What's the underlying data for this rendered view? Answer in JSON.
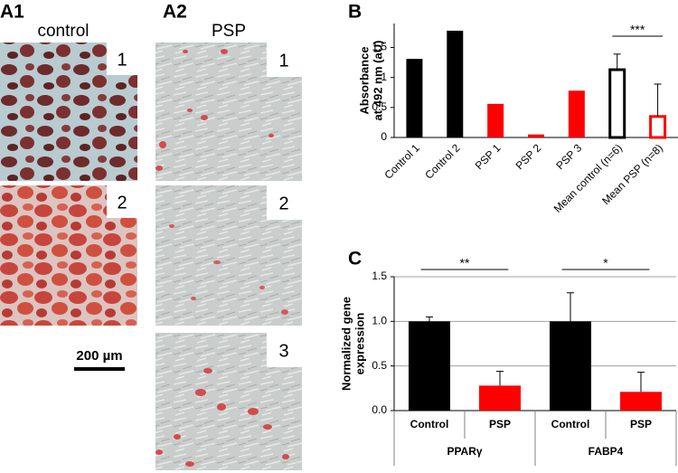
{
  "panels": {
    "a1": {
      "label": "A1",
      "title": "control",
      "insets": [
        "1",
        "2"
      ],
      "scale_bar": "200 µm"
    },
    "a2": {
      "label": "A2",
      "title": "PSP",
      "insets": [
        "1",
        "2",
        "3"
      ]
    }
  },
  "chart_data": [
    {
      "type": "bar",
      "panel_label": "B",
      "ylabel": [
        "Absorbance",
        "at 492 nm (aU)"
      ],
      "categories": [
        "Control 1",
        "Control 2",
        "PSP 1",
        "PSP 2",
        "PSP 3",
        "Mean control (n=6)",
        "Mean PSP (n=8)"
      ],
      "values": [
        1.31,
        1.78,
        0.56,
        0.05,
        0.78,
        1.13,
        0.35
      ],
      "errors": [
        null,
        null,
        null,
        null,
        null,
        0.26,
        0.54
      ],
      "colors": [
        "#000000",
        "#000000",
        "#ff0000",
        "#ff0000",
        "#ff0000",
        "#000000",
        "#ff0000"
      ],
      "hollow": [
        false,
        false,
        false,
        false,
        false,
        true,
        true
      ],
      "ylim": [
        0,
        1.9
      ],
      "yticks": [
        0,
        0.5,
        1,
        1.5
      ],
      "grid": false,
      "significance": [
        {
          "label": "***",
          "between": [
            5,
            6
          ]
        }
      ]
    },
    {
      "type": "bar",
      "panel_label": "C",
      "ylabel": [
        "Normalized gene",
        "expression"
      ],
      "categories": [
        "Control",
        "PSP",
        "Control",
        "PSP"
      ],
      "groups": [
        "PPARγ",
        "FABP4"
      ],
      "values": [
        1.0,
        0.28,
        1.0,
        0.21
      ],
      "errors": [
        0.05,
        0.16,
        0.32,
        0.22
      ],
      "colors": [
        "#000000",
        "#ff0000",
        "#000000",
        "#ff0000"
      ],
      "hollow": [
        false,
        false,
        false,
        false
      ],
      "ylim": [
        0,
        1.5
      ],
      "yticks": [
        {
          "value": 0,
          "label": "0.0"
        },
        {
          "value": 0.5,
          "label": "0.5"
        },
        {
          "value": 1,
          "label": "1.0"
        },
        {
          "value": 1.5,
          "label": "1.5"
        }
      ],
      "grid": true,
      "significance": [
        {
          "label": "**",
          "between": [
            0,
            1
          ]
        },
        {
          "label": "*",
          "between": [
            2,
            3
          ]
        }
      ]
    }
  ]
}
